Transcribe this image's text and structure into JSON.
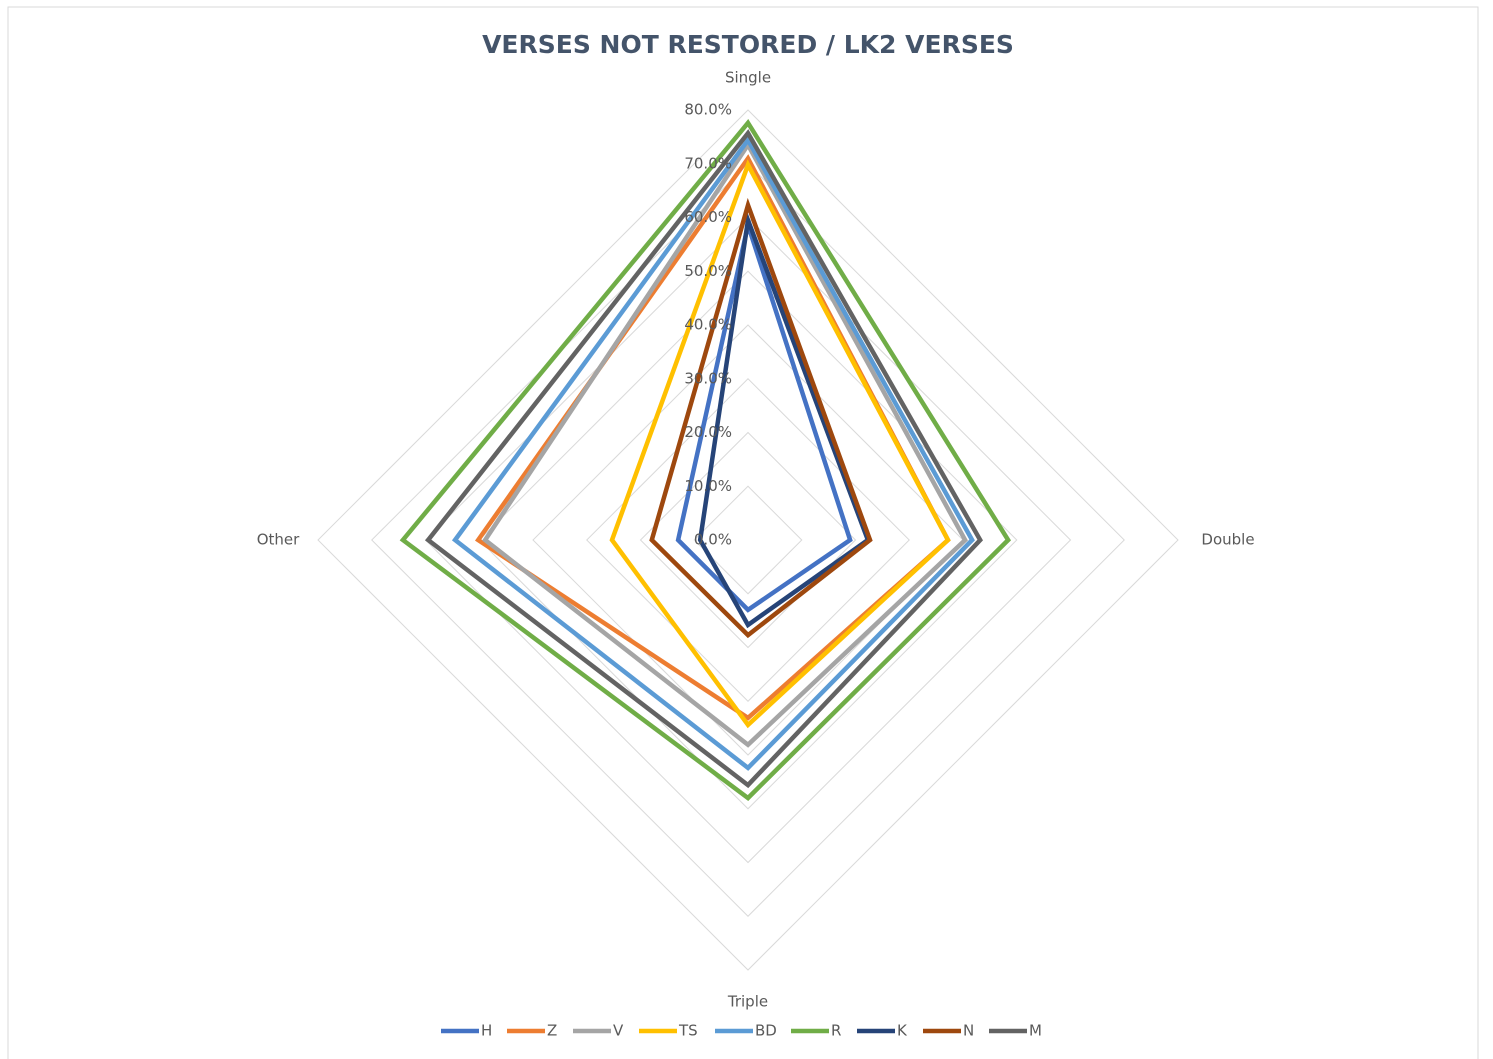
{
  "chart_data": {
    "type": "radar",
    "title": "VERSES NOT RESTORED / LK2 VERSES",
    "categories": [
      "Single",
      "Double",
      "Triple",
      "Other"
    ],
    "ylim": [
      0,
      80
    ],
    "yticks": [
      {
        "value": 0,
        "label": "0.0%"
      },
      {
        "value": 10,
        "label": "10.0%"
      },
      {
        "value": 20,
        "label": "20.0%"
      },
      {
        "value": 30,
        "label": "30.0%"
      },
      {
        "value": 40,
        "label": "40.0%"
      },
      {
        "value": 50,
        "label": "50.0%"
      },
      {
        "value": 60,
        "label": "60.0%"
      },
      {
        "value": 70,
        "label": "70.0%"
      },
      {
        "value": 80,
        "label": "80.0%"
      }
    ],
    "grid": true,
    "legend": "bottom",
    "series": [
      {
        "name": "H",
        "color": "#4472c4",
        "values": [
          58.6,
          19,
          13,
          13
        ]
      },
      {
        "name": "Z",
        "color": "#ed7d31",
        "values": [
          71,
          37.2,
          33.1,
          50.2
        ]
      },
      {
        "name": "V",
        "color": "#a5a5a5",
        "values": [
          73.5,
          40.4,
          38.1,
          48.9
        ]
      },
      {
        "name": "TS",
        "color": "#ffc000",
        "values": [
          69.8,
          37.2,
          34.4,
          25.3
        ]
      },
      {
        "name": "BD",
        "color": "#5b9bd5",
        "values": [
          74.4,
          41.7,
          42.4,
          54.5
        ]
      },
      {
        "name": "R",
        "color": "#70ad47",
        "values": [
          77.6,
          48.4,
          48,
          64.2
        ]
      },
      {
        "name": "K",
        "color": "#264478",
        "values": [
          59.5,
          22.3,
          15.8,
          8.9
        ]
      },
      {
        "name": "N",
        "color": "#9e480e",
        "values": [
          62.3,
          22.7,
          17.7,
          17.9
        ]
      },
      {
        "name": "M",
        "color": "#636363",
        "values": [
          75.7,
          43.2,
          45.6,
          59.5
        ]
      }
    ]
  }
}
